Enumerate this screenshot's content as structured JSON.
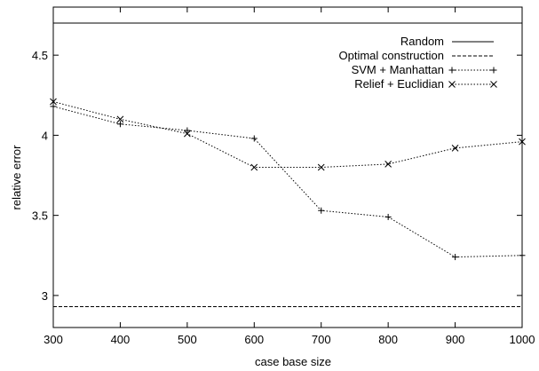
{
  "chart_data": {
    "type": "line",
    "title": "",
    "xlabel": "case base size",
    "ylabel": "relative error",
    "xlim": [
      300,
      1000
    ],
    "ylim": [
      2.8,
      4.8
    ],
    "xticks": [
      300,
      400,
      500,
      600,
      700,
      800,
      900,
      1000
    ],
    "yticks": [
      3,
      3.5,
      4,
      4.5
    ],
    "ytick_labels": [
      "3",
      "3.5",
      "4",
      "4.5"
    ],
    "grid": false,
    "legend_position": "top-right",
    "series": [
      {
        "name": "Random",
        "style": "solid",
        "marker": "none",
        "x": [
          300,
          1000
        ],
        "y": [
          4.7,
          4.7
        ]
      },
      {
        "name": "Optimal construction",
        "style": "dashed",
        "marker": "none",
        "x": [
          300,
          1000
        ],
        "y": [
          2.93,
          2.93
        ]
      },
      {
        "name": "SVM + Manhattan",
        "style": "dotted",
        "marker": "plus",
        "x": [
          300,
          400,
          500,
          600,
          700,
          800,
          900,
          1000
        ],
        "y": [
          4.18,
          4.07,
          4.03,
          3.98,
          3.53,
          3.49,
          3.24,
          3.25
        ]
      },
      {
        "name": "Relief + Euclidian",
        "style": "dotted",
        "marker": "cross",
        "x": [
          300,
          400,
          500,
          600,
          700,
          800,
          900,
          1000
        ],
        "y": [
          4.21,
          4.1,
          4.01,
          3.8,
          3.8,
          3.82,
          3.92,
          3.96
        ]
      }
    ]
  }
}
